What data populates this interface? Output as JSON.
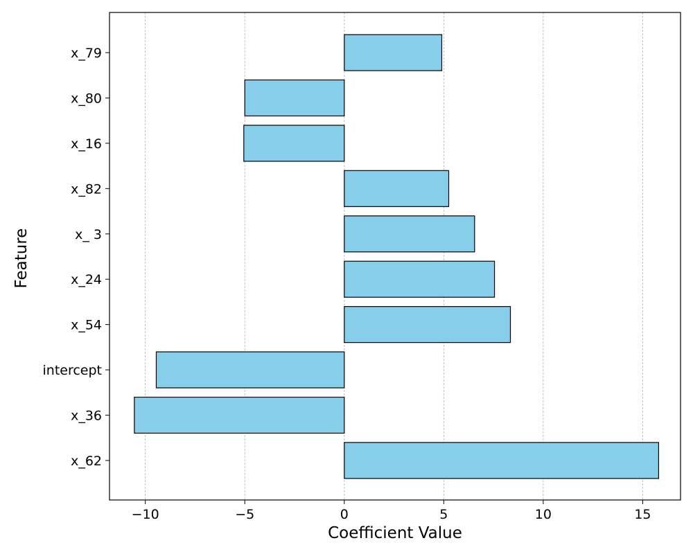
{
  "chart_data": {
    "type": "bar",
    "orientation": "horizontal",
    "title": "",
    "xlabel": "Coefficient Value",
    "ylabel": "Feature",
    "categories": [
      "x_79",
      "x_80",
      "x_16",
      "x_82",
      "x_ 3",
      "x_24",
      "x_54",
      "intercept",
      "x_36",
      "x_62"
    ],
    "values": [
      4.9,
      -5.0,
      -5.05,
      5.25,
      6.55,
      7.55,
      8.35,
      -9.45,
      -10.55,
      15.8
    ],
    "xlim": [
      -11.8,
      16.9
    ],
    "xticks": [
      -10,
      -5,
      0,
      5,
      10,
      15
    ],
    "xtick_labels": [
      "−10",
      "−5",
      "0",
      "5",
      "10",
      "15"
    ],
    "grid": "x-axis dashed",
    "bar_color": "#87ceeb",
    "edge_color": "#000000"
  }
}
